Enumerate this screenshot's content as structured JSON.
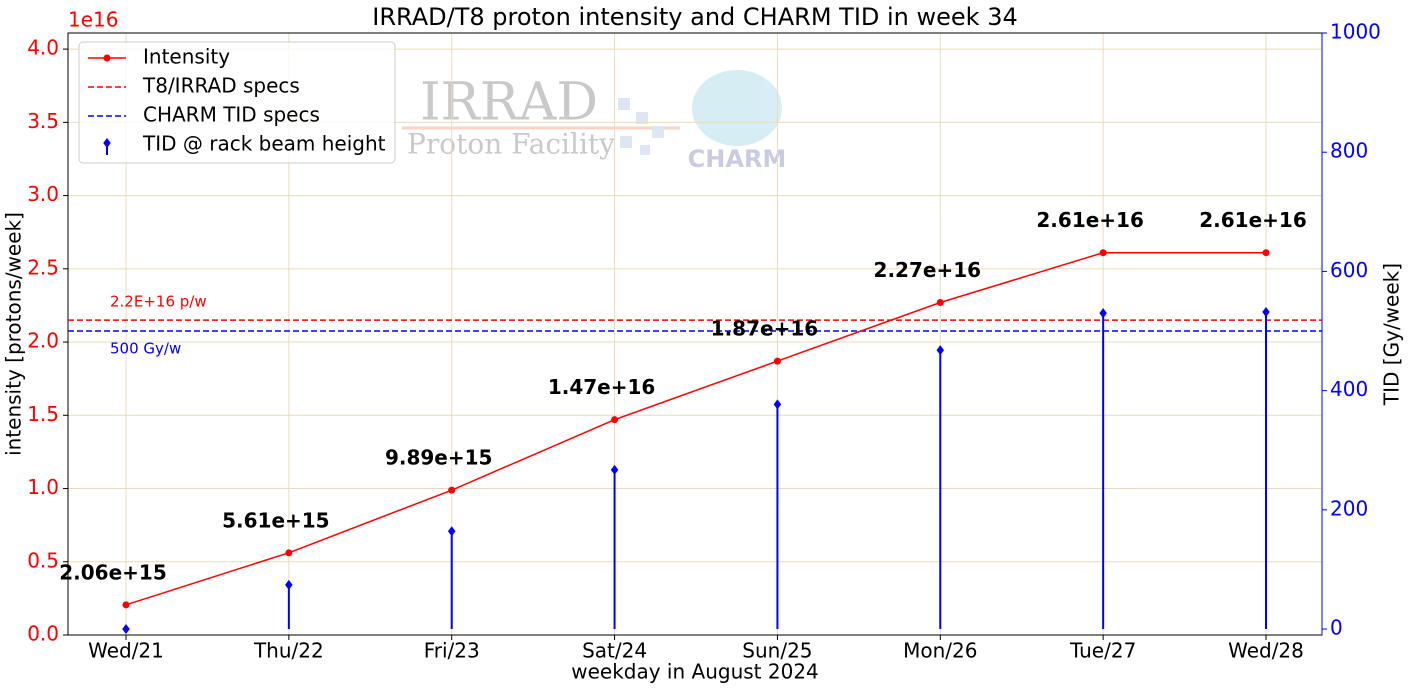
{
  "chart_data": {
    "type": "line",
    "title": "IRRAD/T8 proton intensity and CHARM TID in week 34",
    "xlabel": "weekday in August 2024",
    "ylabel": "intensity [protons/week]",
    "y2label": "TID [Gy/week]",
    "y_offset_label": "1e16",
    "categories": [
      "Wed/21",
      "Thu/22",
      "Fri/23",
      "Sat/24",
      "Sun/25",
      "Mon/26",
      "Tue/27",
      "Wed/28"
    ],
    "series": [
      {
        "name": "Intensity",
        "color": "#ff0000",
        "style": "line",
        "axis": "y",
        "values": [
          2060000000000000.0,
          5610000000000000.0,
          9890000000000000.0,
          1.47e+16,
          1.87e+16,
          2.27e+16,
          2.61e+16,
          2.61e+16
        ],
        "value_labels": [
          "2.06e+15",
          "5.61e+15",
          "9.89e+15",
          "1.47e+16",
          "1.87e+16",
          "2.27e+16",
          "2.61e+16",
          "2.61e+16"
        ]
      },
      {
        "name": "TID @ rack beam height",
        "color": "#0000ff",
        "style": "stem",
        "axis": "y2",
        "values": [
          0,
          74,
          164,
          267,
          377,
          468,
          530,
          532
        ]
      }
    ],
    "hlines": [
      {
        "name": "T8/IRRAD specs",
        "value": 2.15e+16,
        "axis": "y",
        "color": "#ff0000",
        "label": "2.2E+16 p/w"
      },
      {
        "name": "CHARM TID specs",
        "value": 500,
        "axis": "y2",
        "color": "#0000ff",
        "label": "500 Gy/w"
      }
    ],
    "ylim": [
      0,
      4.11e+16
    ],
    "yticks": [
      {
        "value": 0,
        "label": "0.0"
      },
      {
        "value": 5000000000000000.0,
        "label": "0.5"
      },
      {
        "value": 1e+16,
        "label": "1.0"
      },
      {
        "value": 1.5e+16,
        "label": "1.5"
      },
      {
        "value": 2e+16,
        "label": "2.0"
      },
      {
        "value": 2.5e+16,
        "label": "2.5"
      },
      {
        "value": 3e+16,
        "label": "3.0"
      },
      {
        "value": 3.5e+16,
        "label": "3.5"
      },
      {
        "value": 4e+16,
        "label": "4.0"
      }
    ],
    "y2lim": [
      -10,
      1000
    ],
    "y2ticks": [
      0,
      200,
      400,
      600,
      800,
      1000
    ],
    "grid": true,
    "legend": "upper left",
    "watermark": {
      "irrad": "IRRAD",
      "irrad_sub": "Proton Facility",
      "charm": "CHARM"
    }
  }
}
